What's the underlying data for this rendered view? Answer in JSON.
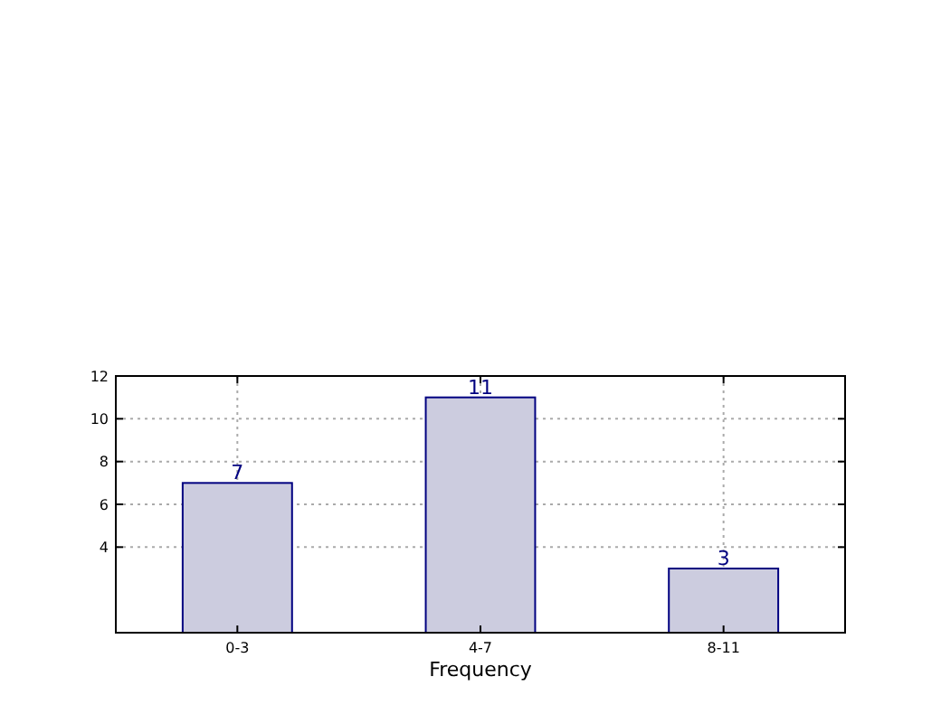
{
  "chart_data": {
    "type": "bar",
    "xlabel": "Frequency",
    "categories": [
      "0-3",
      "4-7",
      "8-11"
    ],
    "values": [
      7,
      11,
      3
    ],
    "color": "#ccccdf",
    "ylim": [
      0,
      12
    ],
    "yticks": [
      4,
      6,
      8,
      10,
      12
    ],
    "grid": true,
    "data_labels": true
  }
}
